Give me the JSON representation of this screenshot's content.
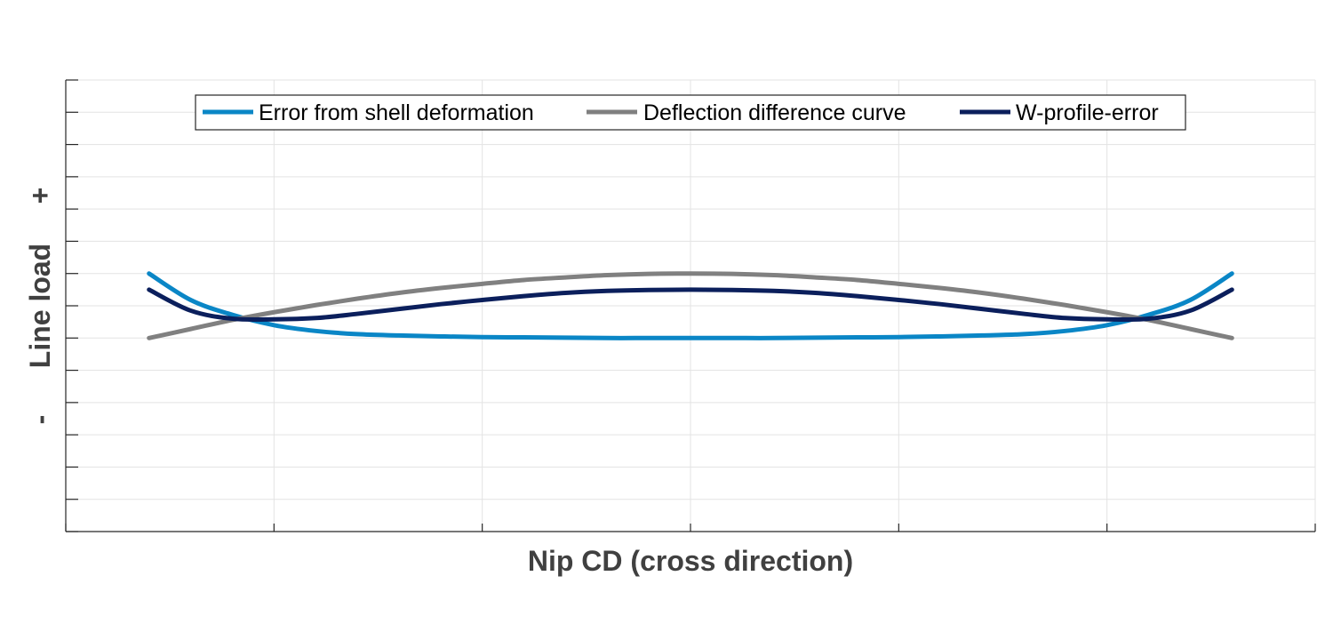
{
  "chart_data": {
    "type": "line",
    "title": "",
    "xlabel": "Nip CD (cross direction)",
    "ylabel": "Line load",
    "y_plus_label": "+",
    "y_minus_label": "-",
    "xlim": [
      -6,
      6
    ],
    "ylim": [
      -6,
      8
    ],
    "x_ticks": [
      -6,
      -4,
      -2,
      0,
      2,
      4,
      6
    ],
    "y_ticks": [
      -6,
      -5,
      -4,
      -3,
      -2,
      -1,
      0,
      1,
      2,
      3,
      4,
      5,
      6,
      7,
      8
    ],
    "tick_labels_shown": false,
    "grid": true,
    "legend_position": "top-center",
    "x": [
      -5.2,
      -4.8,
      -4.4,
      -4.0,
      -3.6,
      -3.2,
      -2.8,
      -2.4,
      -2.0,
      -1.6,
      -1.2,
      -0.8,
      -0.4,
      0.0,
      0.4,
      0.8,
      1.2,
      1.6,
      2.0,
      2.4,
      2.8,
      3.2,
      3.6,
      4.0,
      4.4,
      4.8,
      5.2
    ],
    "series": [
      {
        "name": "Error from shell deformation",
        "color": "#0a86c6",
        "values": [
          2.0,
          1.18,
          0.72,
          0.4,
          0.22,
          0.12,
          0.08,
          0.05,
          0.03,
          0.02,
          0.01,
          0.0,
          0.0,
          0.0,
          0.0,
          0.0,
          0.01,
          0.02,
          0.03,
          0.05,
          0.08,
          0.12,
          0.22,
          0.4,
          0.72,
          1.18,
          2.0
        ]
      },
      {
        "name": "Deflection difference curve",
        "color": "#808080",
        "values": [
          0.0,
          0.28,
          0.56,
          0.8,
          1.02,
          1.22,
          1.4,
          1.55,
          1.68,
          1.8,
          1.88,
          1.95,
          1.99,
          2.0,
          1.99,
          1.95,
          1.88,
          1.8,
          1.68,
          1.55,
          1.4,
          1.22,
          1.02,
          0.8,
          0.56,
          0.28,
          0.0
        ]
      },
      {
        "name": "W-profile-error",
        "color": "#0b1f5c",
        "values": [
          1.5,
          0.85,
          0.6,
          0.58,
          0.62,
          0.75,
          0.9,
          1.05,
          1.18,
          1.3,
          1.4,
          1.46,
          1.49,
          1.5,
          1.49,
          1.46,
          1.4,
          1.3,
          1.18,
          1.05,
          0.9,
          0.75,
          0.62,
          0.58,
          0.6,
          0.85,
          1.5
        ]
      }
    ]
  }
}
